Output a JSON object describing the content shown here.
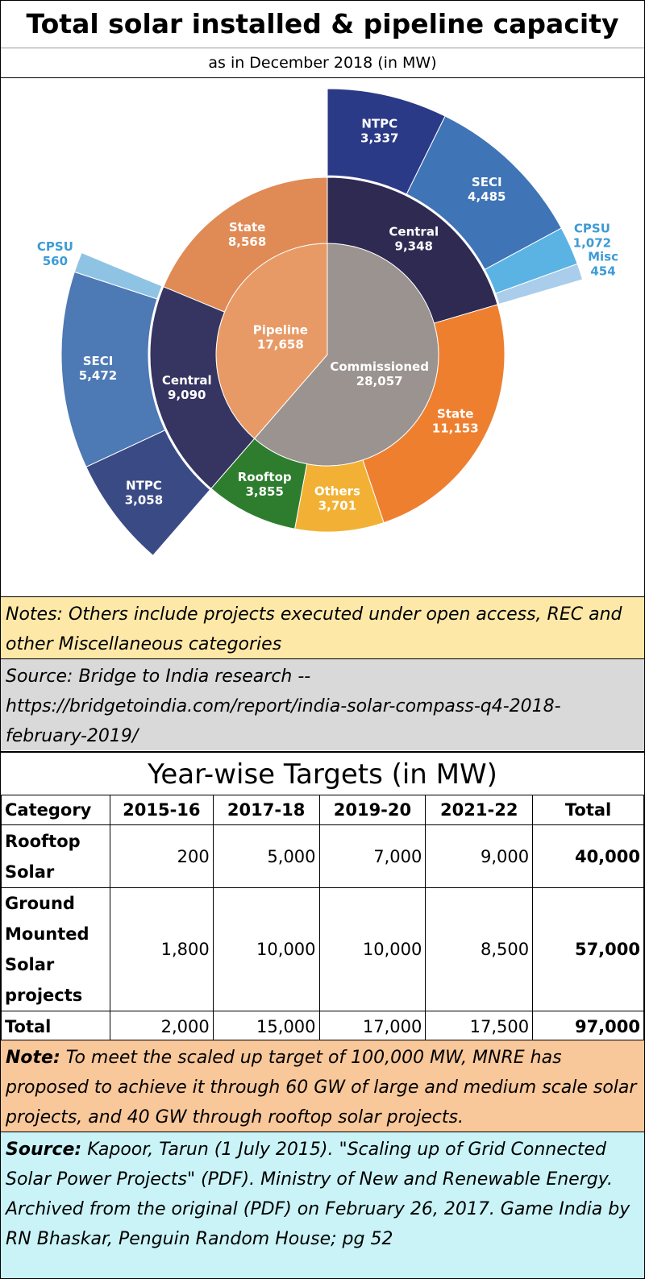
{
  "title": "Total solar installed & pipeline capacity",
  "subtitle": "as in December 2018 (in MW)",
  "chart_data": {
    "type": "pie",
    "variant": "sunburst",
    "inner": [
      {
        "name": "Pipeline",
        "value": 17658,
        "value_label": "17,658",
        "color": "#e89a66"
      },
      {
        "name": "Commissioned",
        "value": 28057,
        "value_label": "28,057",
        "color": "#9a9390"
      }
    ],
    "middle": [
      {
        "name": "Central",
        "parent": "Commissioned",
        "value": 9348,
        "value_label": "9,348",
        "color": "#2e2a52"
      },
      {
        "name": "State",
        "parent": "Commissioned",
        "value": 11153,
        "value_label": "11,153",
        "color": "#ee7f2f"
      },
      {
        "name": "Others",
        "parent": "Commissioned",
        "value": 3701,
        "value_label": "3,701",
        "color": "#f2b134"
      },
      {
        "name": "Rooftop",
        "parent": "Commissioned",
        "value": 3855,
        "value_label": "3,855",
        "color": "#2e7d2e"
      },
      {
        "name": "Central",
        "parent": "Pipeline",
        "value": 9090,
        "value_label": "9,090",
        "color": "#363461"
      },
      {
        "name": "State",
        "parent": "Pipeline",
        "value": 8568,
        "value_label": "8,568",
        "color": "#e08a55"
      }
    ],
    "outer": [
      {
        "name": "NTPC",
        "parent": "Central (Commissioned)",
        "value": 3337,
        "value_label": "3,337",
        "color": "#2b3a87"
      },
      {
        "name": "SECI",
        "parent": "Central (Commissioned)",
        "value": 4485,
        "value_label": "4,485",
        "color": "#3f74b6"
      },
      {
        "name": "CPSU",
        "parent": "Central (Commissioned)",
        "value": 1072,
        "value_label": "1,072",
        "color": "#5bb3e3"
      },
      {
        "name": "Misc",
        "parent": "Central (Commissioned)",
        "value": 454,
        "value_label": "454",
        "color": "#a9cdea"
      },
      {
        "name": "NTPC",
        "parent": "Central (Pipeline)",
        "value": 3058,
        "value_label": "3,058",
        "color": "#3a4a85"
      },
      {
        "name": "SECI",
        "parent": "Central (Pipeline)",
        "value": 5472,
        "value_label": "5,472",
        "color": "#4d79b4"
      },
      {
        "name": "CPSU",
        "parent": "Central (Pipeline)",
        "value": 560,
        "value_label": "560",
        "color": "#8ec3e4"
      }
    ]
  },
  "notes": "Notes: Others include projects executed under open access, REC and other Miscellaneous categories",
  "source1": "Source: Bridge to India research -- https://bridgetoindia.com/report/india-solar-compass-q4-2018-february-2019/",
  "table": {
    "title": "Year-wise Targets (in MW)",
    "headers": [
      "Category",
      "2015-16",
      "2017-18",
      "2019-20",
      "2021-22",
      "Total"
    ],
    "rows": [
      {
        "category": "Rooftop Solar",
        "values": [
          "200",
          "5,000",
          "7,000",
          "9,000"
        ],
        "total": "40,000"
      },
      {
        "category": "Ground Mounted Solar projects",
        "values": [
          "1,800",
          "10,000",
          "10,000",
          "8,500"
        ],
        "total": "57,000"
      },
      {
        "category": "Total",
        "values": [
          "2,000",
          "15,000",
          "17,000",
          "17,500"
        ],
        "total": "97,000"
      }
    ]
  },
  "note2": {
    "label": "Note:",
    "text": " To meet the scaled up target of 100,000 MW, MNRE has proposed to achieve it through 60 GW of large and medium scale solar projects, and 40 GW through rooftop solar projects."
  },
  "source2": {
    "label": "Source:",
    "text": " Kapoor, Tarun (1 July 2015). \"Scaling up of Grid Connected Solar Power Projects\" (PDF). Ministry of New and Renewable Energy. Archived from the original (PDF) on February 26, 2017. Game India by RN Bhaskar, Penguin Random House; pg 52"
  }
}
